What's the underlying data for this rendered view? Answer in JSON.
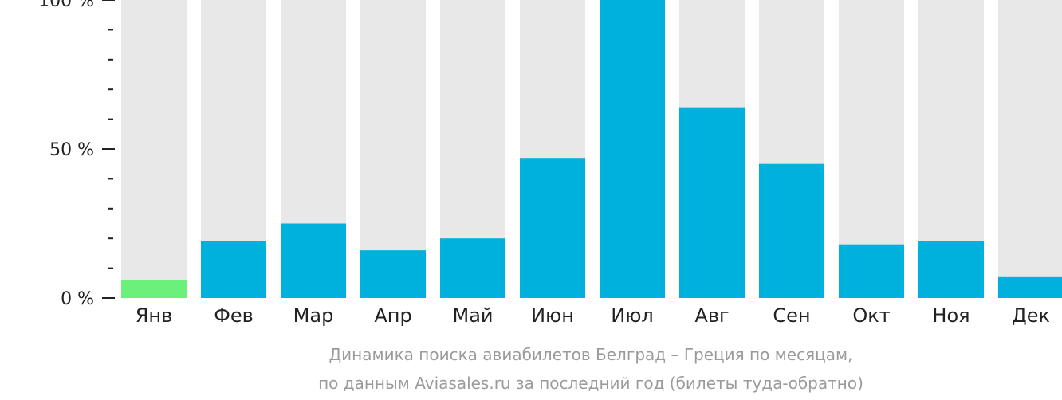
{
  "chart_data": {
    "type": "bar",
    "categories": [
      "Янв",
      "Фев",
      "Мар",
      "Апр",
      "Май",
      "Июн",
      "Июл",
      "Авг",
      "Сен",
      "Окт",
      "Ноя",
      "Дек"
    ],
    "values": [
      6,
      19,
      25,
      16,
      20,
      47,
      100,
      64,
      45,
      18,
      19,
      7
    ],
    "ylim": [
      0,
      100
    ],
    "y_ticks": [
      {
        "value": 0,
        "label": "0 %"
      },
      {
        "value": 50,
        "label": "50 %"
      },
      {
        "value": 100,
        "label": "100 %"
      }
    ],
    "minor_tick_step": 10,
    "highlight_index": 0,
    "colors": {
      "bar": "#00b0dd",
      "highlight": "#6cf07c",
      "background_bar": "#e8e8e8",
      "axis": "#222222"
    },
    "grid": false,
    "legend": "none"
  },
  "caption": {
    "line1": "Динамика поиска авиабилетов Белград – Греция по месяцам,",
    "line2": "по данным Aviasales.ru за последний год (билеты туда-обратно)"
  }
}
